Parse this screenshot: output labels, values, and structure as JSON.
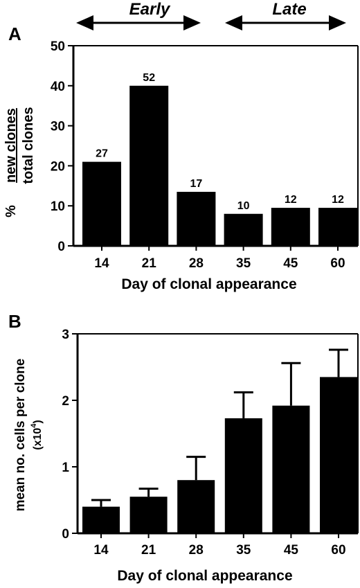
{
  "header": {
    "early_label": "Early",
    "late_label": "Late"
  },
  "chart_data": [
    {
      "panel_label": "A",
      "type": "bar",
      "categories": [
        "14",
        "21",
        "28",
        "35",
        "45",
        "60"
      ],
      "values": [
        21,
        40,
        13.5,
        8,
        9.5,
        9.5
      ],
      "data_labels": [
        "27",
        "52",
        "17",
        "10",
        "12",
        "12"
      ],
      "title": "",
      "xlabel": "Day of clonal appearance",
      "ylabel_prefix": "%",
      "ylabel_numerator": "new clones",
      "ylabel_denominator": "total clones",
      "ylim": [
        0,
        50
      ],
      "yticks": [
        "0",
        "10",
        "20",
        "30",
        "40",
        "50"
      ],
      "grid": false,
      "bar_color": "#000000"
    },
    {
      "panel_label": "B",
      "type": "bar",
      "categories": [
        "14",
        "21",
        "28",
        "35",
        "45",
        "60"
      ],
      "values": [
        0.4,
        0.55,
        0.8,
        1.73,
        1.92,
        2.35
      ],
      "error_upper": [
        0.5,
        0.67,
        1.15,
        2.12,
        2.56,
        2.76
      ],
      "title": "",
      "xlabel": "Day of clonal appearance",
      "ylabel": "mean no. cells per clone",
      "ylabel_unit": "(x10",
      "ylabel_unit_exp": "4",
      "ylabel_unit_close": ")",
      "ylim": [
        0,
        3
      ],
      "yticks": [
        "0",
        "1",
        "2",
        "3"
      ],
      "grid": false,
      "bar_color": "#000000"
    }
  ]
}
